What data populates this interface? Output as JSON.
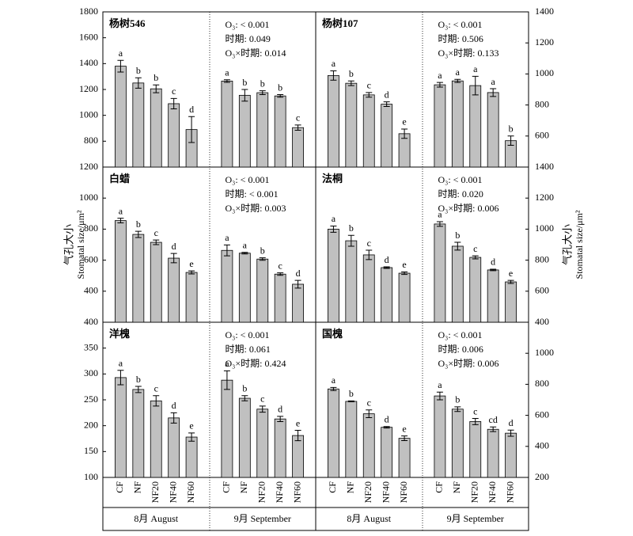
{
  "chart_data": [
    {
      "type": "bar",
      "title": "杨树546",
      "annotations": [
        "O₃: < 0.001",
        "时期: 0.049",
        "O₃×时期: 0.014"
      ],
      "y_axis_side": "left",
      "ylim": [
        600,
        1800
      ],
      "yticks": [
        800,
        1000,
        1200,
        1400,
        1600,
        1800
      ],
      "series": [
        {
          "color": "#c0c0c0",
          "values": [
            1380,
            1250,
            1205,
            1090,
            890
          ],
          "errors": [
            45,
            40,
            30,
            40,
            100
          ],
          "letters": [
            "a",
            "b",
            "b",
            "c",
            "d"
          ]
        },
        {
          "color": "#c0c0c0",
          "values": [
            1265,
            1155,
            1175,
            1150,
            905
          ],
          "errors": [
            10,
            45,
            15,
            10,
            20
          ],
          "letters": [
            "a",
            "b",
            "b",
            "b",
            "c"
          ]
        }
      ]
    },
    {
      "type": "bar",
      "title": "杨树107",
      "annotations": [
        "O₃: < 0.001",
        "时期: 0.506",
        "O₃×时期: 0.133"
      ],
      "y_axis_side": "right",
      "ylim": [
        400,
        1400
      ],
      "yticks": [
        600,
        800,
        1000,
        1200,
        1400
      ],
      "series": [
        {
          "color": "#c0c0c0",
          "values": [
            990,
            940,
            865,
            805,
            615
          ],
          "errors": [
            30,
            15,
            15,
            15,
            30
          ],
          "letters": [
            "a",
            "b",
            "c",
            "d",
            "e"
          ]
        },
        {
          "color": "#c0c0c0",
          "values": [
            930,
            955,
            925,
            880,
            570
          ],
          "errors": [
            15,
            10,
            60,
            25,
            30
          ],
          "letters": [
            "a",
            "a",
            "a",
            "a",
            "b"
          ]
        }
      ]
    },
    {
      "type": "bar",
      "title": "白蜡",
      "annotations": [
        "O₃: < 0.001",
        "时期: < 0.001",
        "O₃×时期: 0.003"
      ],
      "ylabel": [
        "气孔大小",
        "Stomatal size/μm²"
      ],
      "y_axis_side": "left",
      "ylim": [
        200,
        1200
      ],
      "yticks": [
        400,
        600,
        800,
        1000,
        1200
      ],
      "series": [
        {
          "color": "#c0c0c0",
          "values": [
            855,
            766,
            715,
            613,
            521
          ],
          "errors": [
            15,
            20,
            15,
            30,
            10
          ],
          "letters": [
            "a",
            "b",
            "c",
            "d",
            "e"
          ]
        },
        {
          "color": "#c0c0c0",
          "values": [
            663,
            645,
            607,
            510,
            445
          ],
          "errors": [
            35,
            5,
            8,
            8,
            25
          ],
          "letters": [
            "a",
            "a",
            "b",
            "c",
            "d"
          ]
        }
      ]
    },
    {
      "type": "bar",
      "title": "法桐",
      "annotations": [
        "O₃: < 0.001",
        "时期: 0.020",
        "O₃×时期: 0.006"
      ],
      "ylabel": [
        "气孔大小",
        "Stomatal size/μm²"
      ],
      "y_axis_side": "right",
      "ylim": [
        400,
        1400
      ],
      "yticks": [
        400,
        600,
        800,
        1000,
        1200,
        1400
      ],
      "series": [
        {
          "color": "#c0c0c0",
          "values": [
            1000,
            925,
            834,
            752,
            716
          ],
          "errors": [
            20,
            35,
            30,
            5,
            8
          ],
          "letters": [
            "a",
            "b",
            "c",
            "d",
            "e"
          ]
        },
        {
          "color": "#c0c0c0",
          "values": [
            1033,
            890,
            818,
            737,
            660
          ],
          "errors": [
            15,
            25,
            10,
            5,
            10
          ],
          "letters": [
            "a",
            "b",
            "c",
            "d",
            "e"
          ]
        }
      ]
    },
    {
      "type": "bar",
      "title": "洋槐",
      "annotations": [
        "O₃: < 0.001",
        "时期: 0.061",
        "O₃×时期: 0.424"
      ],
      "y_axis_side": "left",
      "ylim": [
        100,
        400
      ],
      "yticks": [
        100,
        150,
        200,
        250,
        300,
        350,
        400
      ],
      "categories": [
        "CF",
        "NF",
        "NF20",
        "NF40",
        "NF60"
      ],
      "series": [
        {
          "name": "8月 August",
          "color": "#c0c0c0",
          "values": [
            293,
            270,
            248,
            215,
            178
          ],
          "errors": [
            14,
            6,
            10,
            10,
            8
          ],
          "letters": [
            "a",
            "b",
            "c",
            "d",
            "e"
          ]
        },
        {
          "name": "9月 September",
          "color": "#c0c0c0",
          "values": [
            288,
            253,
            232,
            213,
            181
          ],
          "errors": [
            18,
            5,
            6,
            5,
            10
          ],
          "letters": [
            "a",
            "b",
            "c",
            "d",
            "e"
          ]
        }
      ]
    },
    {
      "type": "bar",
      "title": "国槐",
      "annotations": [
        "O₃: < 0.001",
        "时期: 0.006",
        "O₃×时期: 0.006"
      ],
      "y_axis_side": "right",
      "ylim": [
        200,
        1200
      ],
      "yticks": [
        200,
        400,
        600,
        800,
        1000
      ],
      "categories": [
        "CF",
        "NF",
        "NF20",
        "NF40",
        "NF60"
      ],
      "series": [
        {
          "name": "8月 August",
          "color": "#c0c0c0",
          "values": [
            770,
            690,
            610,
            523,
            452
          ],
          "errors": [
            10,
            3,
            25,
            5,
            15
          ],
          "letters": [
            "a",
            "b",
            "c",
            "d",
            "e"
          ]
        },
        {
          "name": "9月 September",
          "color": "#c0c0c0",
          "values": [
            725,
            640,
            560,
            510,
            485
          ],
          "errors": [
            25,
            15,
            20,
            15,
            20
          ],
          "letters": [
            "a",
            "b",
            "c",
            "cd",
            "d"
          ]
        }
      ]
    }
  ]
}
